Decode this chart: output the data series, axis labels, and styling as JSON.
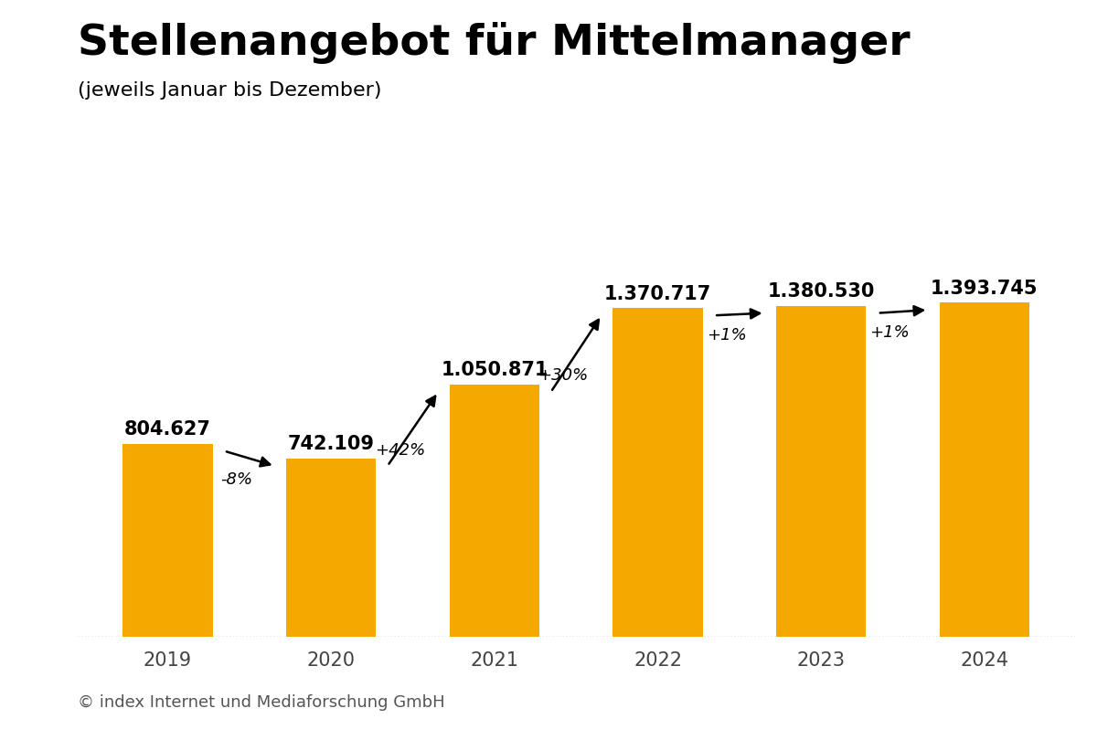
{
  "title": "Stellenangebot für Mittelmanager",
  "subtitle": "(jeweils Januar bis Dezember)",
  "footer": "© index Internet und Mediaforschung GmbH",
  "years": [
    "2019",
    "2020",
    "2021",
    "2022",
    "2023",
    "2024"
  ],
  "values": [
    804627,
    742109,
    1050871,
    1370717,
    1380530,
    1393745
  ],
  "labels": [
    "804.627",
    "742.109",
    "1.050.871",
    "1.370.717",
    "1.380.530",
    "1.393.745"
  ],
  "bar_color": "#F5A800",
  "bar_width": 0.55,
  "background_color": "#FFFFFF",
  "title_fontsize": 34,
  "subtitle_fontsize": 16,
  "label_fontsize": 15,
  "tick_fontsize": 15,
  "footer_fontsize": 13,
  "arrow_labels": [
    "-8%",
    "+42%",
    "+30%",
    "+1%",
    "+1%"
  ],
  "ylim": [
    0,
    1700000
  ]
}
